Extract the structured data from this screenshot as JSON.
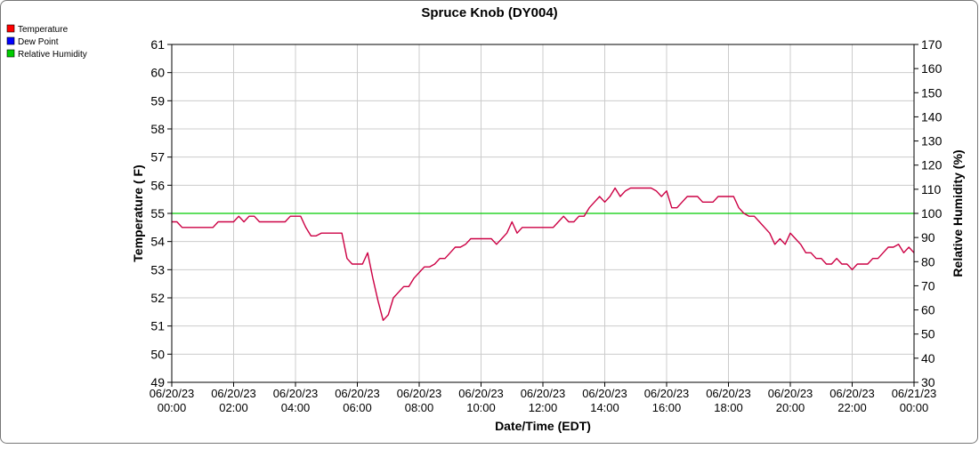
{
  "chart_data": {
    "type": "line",
    "title": "Spruce Knob (DY004)",
    "xlabel": "Date/Time (EDT)",
    "ylabel": "Temperature ( F)",
    "y2label": "Relative Humidity (%)",
    "ylim": [
      49,
      61
    ],
    "y2lim": [
      30,
      170
    ],
    "grid": true,
    "legend_position": "top-left",
    "x_ticks": [
      {
        "date": "06/20/23",
        "time": "00:00"
      },
      {
        "date": "06/20/23",
        "time": "02:00"
      },
      {
        "date": "06/20/23",
        "time": "04:00"
      },
      {
        "date": "06/20/23",
        "time": "06:00"
      },
      {
        "date": "06/20/23",
        "time": "08:00"
      },
      {
        "date": "06/20/23",
        "time": "10:00"
      },
      {
        "date": "06/20/23",
        "time": "12:00"
      },
      {
        "date": "06/20/23",
        "time": "14:00"
      },
      {
        "date": "06/20/23",
        "time": "16:00"
      },
      {
        "date": "06/20/23",
        "time": "18:00"
      },
      {
        "date": "06/20/23",
        "time": "20:00"
      },
      {
        "date": "06/20/23",
        "time": "22:00"
      },
      {
        "date": "06/21/23",
        "time": "00:00"
      }
    ],
    "y_ticks": [
      49,
      50,
      51,
      52,
      53,
      54,
      55,
      56,
      57,
      58,
      59,
      60,
      61
    ],
    "y2_ticks": [
      30,
      40,
      50,
      60,
      70,
      80,
      90,
      100,
      110,
      120,
      130,
      140,
      150,
      160,
      170
    ],
    "series": [
      {
        "name": "Temperature",
        "color": "#ff0000",
        "axis": "left"
      },
      {
        "name": "Dew Point",
        "color": "#0000ff",
        "axis": "left"
      },
      {
        "name": "Relative Humidity",
        "color": "#00cc00",
        "axis": "right"
      }
    ],
    "overlap_color": "#cc0044",
    "temp_dew_points": [
      [
        "06/20/23 00:00",
        54.7
      ],
      [
        "06/20/23 00:10",
        54.7
      ],
      [
        "06/20/23 00:20",
        54.5
      ],
      [
        "06/20/23 00:30",
        54.5
      ],
      [
        "06/20/23 01:00",
        54.5
      ],
      [
        "06/20/23 01:20",
        54.5
      ],
      [
        "06/20/23 01:30",
        54.7
      ],
      [
        "06/20/23 02:00",
        54.7
      ],
      [
        "06/20/23 02:10",
        54.9
      ],
      [
        "06/20/23 02:20",
        54.7
      ],
      [
        "06/20/23 02:30",
        54.9
      ],
      [
        "06/20/23 02:40",
        54.9
      ],
      [
        "06/20/23 02:50",
        54.7
      ],
      [
        "06/20/23 03:00",
        54.7
      ],
      [
        "06/20/23 03:20",
        54.7
      ],
      [
        "06/20/23 03:40",
        54.7
      ],
      [
        "06/20/23 03:50",
        54.9
      ],
      [
        "06/20/23 04:00",
        54.9
      ],
      [
        "06/20/23 04:10",
        54.9
      ],
      [
        "06/20/23 04:20",
        54.5
      ],
      [
        "06/20/23 04:30",
        54.2
      ],
      [
        "06/20/23 04:40",
        54.2
      ],
      [
        "06/20/23 04:50",
        54.3
      ],
      [
        "06/20/23 05:00",
        54.3
      ],
      [
        "06/20/23 05:10",
        54.3
      ],
      [
        "06/20/23 05:20",
        54.3
      ],
      [
        "06/20/23 05:30",
        54.3
      ],
      [
        "06/20/23 05:40",
        53.4
      ],
      [
        "06/20/23 05:50",
        53.2
      ],
      [
        "06/20/23 06:00",
        53.2
      ],
      [
        "06/20/23 06:10",
        53.2
      ],
      [
        "06/20/23 06:20",
        53.6
      ],
      [
        "06/20/23 06:30",
        52.7
      ],
      [
        "06/20/23 06:40",
        51.9
      ],
      [
        "06/20/23 06:50",
        51.2
      ],
      [
        "06/20/23 07:00",
        51.4
      ],
      [
        "06/20/23 07:10",
        52.0
      ],
      [
        "06/20/23 07:20",
        52.2
      ],
      [
        "06/20/23 07:30",
        52.4
      ],
      [
        "06/20/23 07:40",
        52.4
      ],
      [
        "06/20/23 07:50",
        52.7
      ],
      [
        "06/20/23 08:00",
        52.9
      ],
      [
        "06/20/23 08:10",
        53.1
      ],
      [
        "06/20/23 08:20",
        53.1
      ],
      [
        "06/20/23 08:30",
        53.2
      ],
      [
        "06/20/23 08:40",
        53.4
      ],
      [
        "06/20/23 08:50",
        53.4
      ],
      [
        "06/20/23 09:00",
        53.6
      ],
      [
        "06/20/23 09:10",
        53.8
      ],
      [
        "06/20/23 09:20",
        53.8
      ],
      [
        "06/20/23 09:30",
        53.9
      ],
      [
        "06/20/23 09:40",
        54.1
      ],
      [
        "06/20/23 09:50",
        54.1
      ],
      [
        "06/20/23 10:00",
        54.1
      ],
      [
        "06/20/23 10:20",
        54.1
      ],
      [
        "06/20/23 10:30",
        53.9
      ],
      [
        "06/20/23 10:40",
        54.1
      ],
      [
        "06/20/23 10:50",
        54.3
      ],
      [
        "06/20/23 11:00",
        54.7
      ],
      [
        "06/20/23 11:10",
        54.3
      ],
      [
        "06/20/23 11:20",
        54.5
      ],
      [
        "06/20/23 11:40",
        54.5
      ],
      [
        "06/20/23 12:00",
        54.5
      ],
      [
        "06/20/23 12:20",
        54.5
      ],
      [
        "06/20/23 12:30",
        54.7
      ],
      [
        "06/20/23 12:40",
        54.9
      ],
      [
        "06/20/23 12:50",
        54.7
      ],
      [
        "06/20/23 13:00",
        54.7
      ],
      [
        "06/20/23 13:10",
        54.9
      ],
      [
        "06/20/23 13:20",
        54.9
      ],
      [
        "06/20/23 13:30",
        55.2
      ],
      [
        "06/20/23 13:40",
        55.4
      ],
      [
        "06/20/23 13:50",
        55.6
      ],
      [
        "06/20/23 14:00",
        55.4
      ],
      [
        "06/20/23 14:10",
        55.6
      ],
      [
        "06/20/23 14:20",
        55.9
      ],
      [
        "06/20/23 14:30",
        55.6
      ],
      [
        "06/20/23 14:40",
        55.8
      ],
      [
        "06/20/23 14:50",
        55.9
      ],
      [
        "06/20/23 15:10",
        55.9
      ],
      [
        "06/20/23 15:30",
        55.9
      ],
      [
        "06/20/23 15:40",
        55.8
      ],
      [
        "06/20/23 15:50",
        55.6
      ],
      [
        "06/20/23 16:00",
        55.8
      ],
      [
        "06/20/23 16:10",
        55.2
      ],
      [
        "06/20/23 16:20",
        55.2
      ],
      [
        "06/20/23 16:30",
        55.4
      ],
      [
        "06/20/23 16:40",
        55.6
      ],
      [
        "06/20/23 17:00",
        55.6
      ],
      [
        "06/20/23 17:10",
        55.4
      ],
      [
        "06/20/23 17:20",
        55.4
      ],
      [
        "06/20/23 17:30",
        55.4
      ],
      [
        "06/20/23 17:40",
        55.6
      ],
      [
        "06/20/23 18:00",
        55.6
      ],
      [
        "06/20/23 18:10",
        55.6
      ],
      [
        "06/20/23 18:20",
        55.2
      ],
      [
        "06/20/23 18:30",
        55.0
      ],
      [
        "06/20/23 18:40",
        54.9
      ],
      [
        "06/20/23 18:50",
        54.9
      ],
      [
        "06/20/23 19:00",
        54.7
      ],
      [
        "06/20/23 19:10",
        54.5
      ],
      [
        "06/20/23 19:20",
        54.3
      ],
      [
        "06/20/23 19:30",
        53.9
      ],
      [
        "06/20/23 19:40",
        54.1
      ],
      [
        "06/20/23 19:50",
        53.9
      ],
      [
        "06/20/23 20:00",
        54.3
      ],
      [
        "06/20/23 20:10",
        54.1
      ],
      [
        "06/20/23 20:20",
        53.9
      ],
      [
        "06/20/23 20:30",
        53.6
      ],
      [
        "06/20/23 20:40",
        53.6
      ],
      [
        "06/20/23 20:50",
        53.4
      ],
      [
        "06/20/23 21:00",
        53.4
      ],
      [
        "06/20/23 21:10",
        53.2
      ],
      [
        "06/20/23 21:20",
        53.2
      ],
      [
        "06/20/23 21:30",
        53.4
      ],
      [
        "06/20/23 21:40",
        53.2
      ],
      [
        "06/20/23 21:50",
        53.2
      ],
      [
        "06/20/23 22:00",
        53.0
      ],
      [
        "06/20/23 22:10",
        53.2
      ],
      [
        "06/20/23 22:20",
        53.2
      ],
      [
        "06/20/23 22:30",
        53.2
      ],
      [
        "06/20/23 22:40",
        53.4
      ],
      [
        "06/20/23 22:50",
        53.4
      ],
      [
        "06/20/23 23:00",
        53.6
      ],
      [
        "06/20/23 23:10",
        53.8
      ],
      [
        "06/20/23 23:20",
        53.8
      ],
      [
        "06/20/23 23:30",
        53.9
      ],
      [
        "06/20/23 23:40",
        53.6
      ],
      [
        "06/20/23 23:50",
        53.8
      ],
      [
        "06/21/23 00:00",
        53.6
      ]
    ],
    "humidity_points": [
      [
        "06/20/23 00:00",
        100
      ],
      [
        "06/21/23 00:00",
        100
      ]
    ]
  }
}
